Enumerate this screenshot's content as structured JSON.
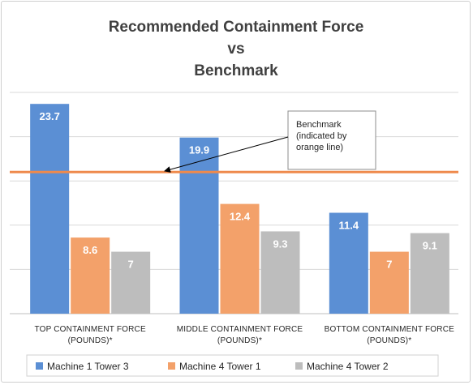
{
  "chart_data": {
    "type": "bar",
    "title": [
      "Recommended Containment Force",
      "vs",
      "Benchmark"
    ],
    "categories": [
      [
        "TOP CONTAINMENT FORCE",
        "(POUNDS)*"
      ],
      [
        "MIDDLE CONTAINMENT FORCE",
        "(POUNDS)*"
      ],
      [
        "BOTTOM CONTAINMENT FORCE",
        "(POUNDS)*"
      ]
    ],
    "series": [
      {
        "name": "Machine 1 Tower 3",
        "color": "#5b8fd4",
        "values": [
          23.7,
          19.9,
          11.4
        ]
      },
      {
        "name": "Machine 4 Tower 1",
        "color": "#f3a16a",
        "values": [
          8.6,
          12.4,
          7
        ]
      },
      {
        "name": "Machine 4 Tower 2",
        "color": "#bdbdbd",
        "values": [
          7,
          9.3,
          9.1
        ]
      }
    ],
    "benchmark": {
      "value": 16,
      "color": "#ef8a4c"
    },
    "annotation": [
      "Benchmark",
      "(indicated by",
      "orange line)"
    ],
    "ylim": [
      0,
      25
    ],
    "gridlines": [
      5,
      10,
      15,
      20,
      25
    ],
    "grid": true,
    "legend": "bottom"
  }
}
